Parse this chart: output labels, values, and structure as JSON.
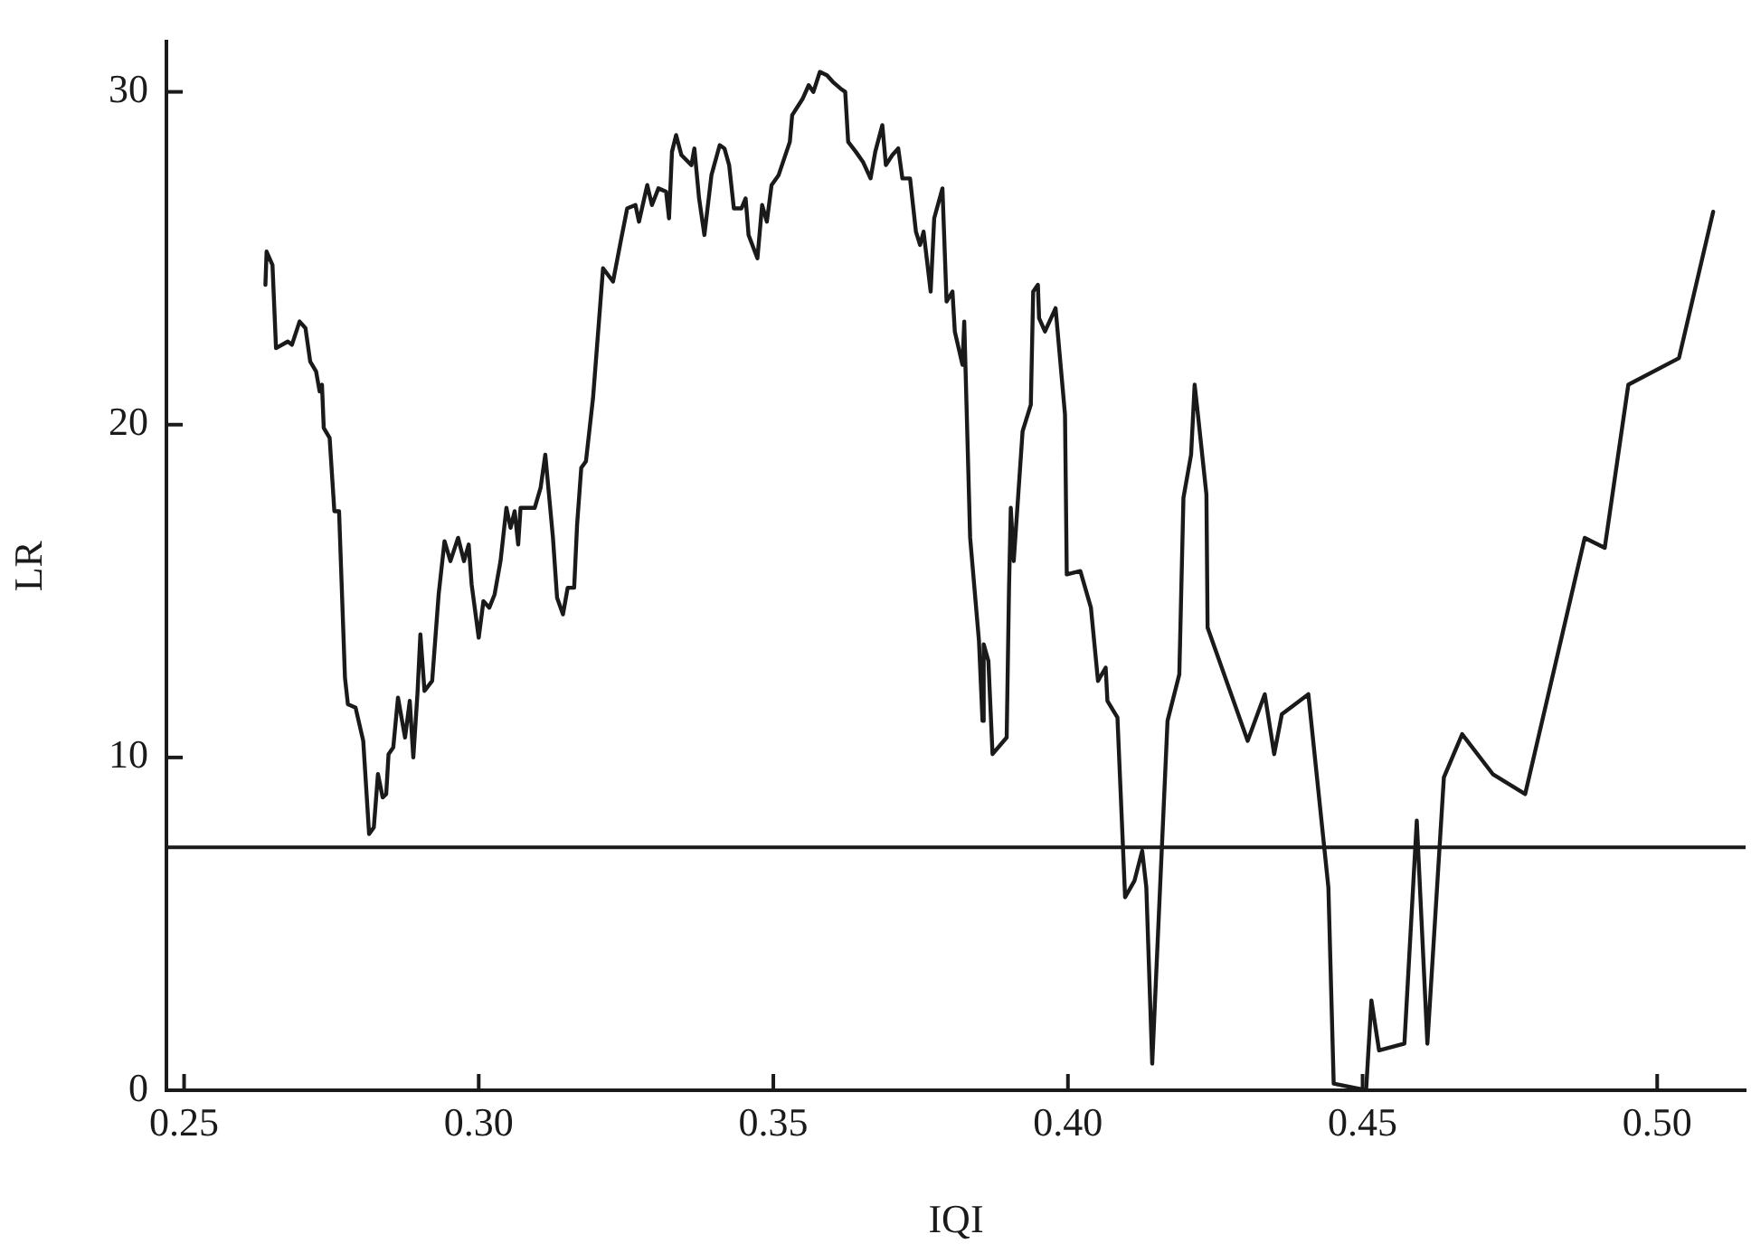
{
  "chart_data": {
    "type": "line",
    "xlabel": "IQI",
    "ylabel": "LR",
    "color": "#1a1a1a",
    "marker": "none",
    "line_style": "solid",
    "legend": false,
    "x": [
      0.2638,
      0.264,
      0.265,
      0.2656,
      0.2676,
      0.2683,
      0.2696,
      0.2706,
      0.2714,
      0.2724,
      0.273,
      0.2734,
      0.2737,
      0.2747,
      0.2755,
      0.2763,
      0.2773,
      0.2778,
      0.2791,
      0.2804,
      0.2814,
      0.2822,
      0.2829,
      0.2837,
      0.2843,
      0.2847,
      0.2855,
      0.2863,
      0.2875,
      0.2883,
      0.2889,
      0.2896,
      0.2901,
      0.2908,
      0.2921,
      0.2932,
      0.2942,
      0.2952,
      0.2965,
      0.2975,
      0.2983,
      0.2988,
      0.3,
      0.3008,
      0.3018,
      0.3027,
      0.3037,
      0.3047,
      0.3054,
      0.3061,
      0.3067,
      0.3071,
      0.3095,
      0.3105,
      0.3113,
      0.3126,
      0.3133,
      0.3143,
      0.3151,
      0.3162,
      0.3167,
      0.3174,
      0.3182,
      0.3194,
      0.3211,
      0.3228,
      0.3242,
      0.3252,
      0.3266,
      0.3272,
      0.3286,
      0.3294,
      0.3305,
      0.3318,
      0.3323,
      0.3328,
      0.3335,
      0.3344,
      0.3361,
      0.3366,
      0.3374,
      0.3383,
      0.3395,
      0.3409,
      0.3417,
      0.3425,
      0.3433,
      0.3446,
      0.3453,
      0.3458,
      0.3473,
      0.3481,
      0.3489,
      0.3497,
      0.3509,
      0.3528,
      0.3532,
      0.355,
      0.356,
      0.3568,
      0.3579,
      0.3591,
      0.3601,
      0.3614,
      0.3622,
      0.3627,
      0.364,
      0.3652,
      0.3665,
      0.3673,
      0.3685,
      0.3691,
      0.3702,
      0.3712,
      0.3719,
      0.3732,
      0.3742,
      0.3749,
      0.3755,
      0.3767,
      0.3773,
      0.3787,
      0.3794,
      0.3804,
      0.3808,
      0.3821,
      0.3824,
      0.3834,
      0.3849,
      0.3855,
      0.3857,
      0.3865,
      0.3872,
      0.3896,
      0.39,
      0.3903,
      0.3908,
      0.3923,
      0.3937,
      0.3941,
      0.3949,
      0.3951,
      0.3961,
      0.3979,
      0.3995,
      0.3998,
      0.4021,
      0.4039,
      0.4051,
      0.4064,
      0.4067,
      0.4084,
      0.4097,
      0.4113,
      0.4126,
      0.4133,
      0.4143,
      0.4169,
      0.4189,
      0.4196,
      0.4209,
      0.4215,
      0.422,
      0.4235,
      0.4237,
      0.4305,
      0.4334,
      0.435,
      0.4363,
      0.4408,
      0.4442,
      0.4451,
      0.4506,
      0.4515,
      0.4528,
      0.4571,
      0.4592,
      0.461,
      0.4638,
      0.4669,
      0.4721,
      0.4776,
      0.4877,
      0.4911,
      0.4951,
      0.5037,
      0.5095
    ],
    "values": [
      24.2,
      25.2,
      24.8,
      22.3,
      22.5,
      22.4,
      23.1,
      22.9,
      21.9,
      21.6,
      21.0,
      21.2,
      19.9,
      19.6,
      17.4,
      17.4,
      12.4,
      11.6,
      11.5,
      10.5,
      7.7,
      7.9,
      9.5,
      8.8,
      8.9,
      10.1,
      10.3,
      11.8,
      10.6,
      11.7,
      10.0,
      11.9,
      13.7,
      12.0,
      12.3,
      14.9,
      16.5,
      15.9,
      16.6,
      15.9,
      16.4,
      15.2,
      13.6,
      14.7,
      14.5,
      14.9,
      15.9,
      17.5,
      16.9,
      17.4,
      16.4,
      17.5,
      17.5,
      18.1,
      19.1,
      16.6,
      14.8,
      14.3,
      15.1,
      15.1,
      17.0,
      18.7,
      18.9,
      20.8,
      24.7,
      24.3,
      25.6,
      26.5,
      26.6,
      26.1,
      27.2,
      26.6,
      27.1,
      27.0,
      26.2,
      28.2,
      28.7,
      28.1,
      27.8,
      28.3,
      26.8,
      25.7,
      27.5,
      28.4,
      28.3,
      27.8,
      26.5,
      26.5,
      26.8,
      25.7,
      25.0,
      26.6,
      26.1,
      27.2,
      27.5,
      28.5,
      29.3,
      29.8,
      30.2,
      30.0,
      30.6,
      30.5,
      30.3,
      30.1,
      30.0,
      28.5,
      28.2,
      27.9,
      27.4,
      28.2,
      29.0,
      27.8,
      28.1,
      28.3,
      27.4,
      27.4,
      25.8,
      25.4,
      25.8,
      24.0,
      26.2,
      27.1,
      23.7,
      24.0,
      22.8,
      21.8,
      23.1,
      16.6,
      13.5,
      11.1,
      13.4,
      12.9,
      10.1,
      10.6,
      15.1,
      17.5,
      15.9,
      19.8,
      20.6,
      24.0,
      24.2,
      23.2,
      22.8,
      23.5,
      20.3,
      15.5,
      15.6,
      14.5,
      12.3,
      12.7,
      11.7,
      11.2,
      5.8,
      6.3,
      7.2,
      6.1,
      0.8,
      11.1,
      12.5,
      17.8,
      19.1,
      21.2,
      20.4,
      17.9,
      13.9,
      10.5,
      11.9,
      10.1,
      11.3,
      11.9,
      6.1,
      0.2,
      0.0,
      2.7,
      1.2,
      1.4,
      8.1,
      1.4,
      9.4,
      10.7,
      9.5,
      8.9,
      16.6,
      16.3,
      21.2,
      22.0,
      26.4
    ],
    "xlim": [
      0.247,
      0.515
    ],
    "ylim": [
      0,
      31.5
    ],
    "xticks": [
      {
        "value": 0.25,
        "label": "0.25"
      },
      {
        "value": 0.3,
        "label": "0.30"
      },
      {
        "value": 0.35,
        "label": "0.35"
      },
      {
        "value": 0.4,
        "label": "0.40"
      },
      {
        "value": 0.45,
        "label": "0.45"
      },
      {
        "value": 0.5,
        "label": "0.50"
      }
    ],
    "yticks": [
      0,
      10,
      20,
      30
    ],
    "ref_lines": [
      {
        "axis": "y",
        "value": 7.3,
        "color": "#1a1a1a"
      }
    ]
  }
}
